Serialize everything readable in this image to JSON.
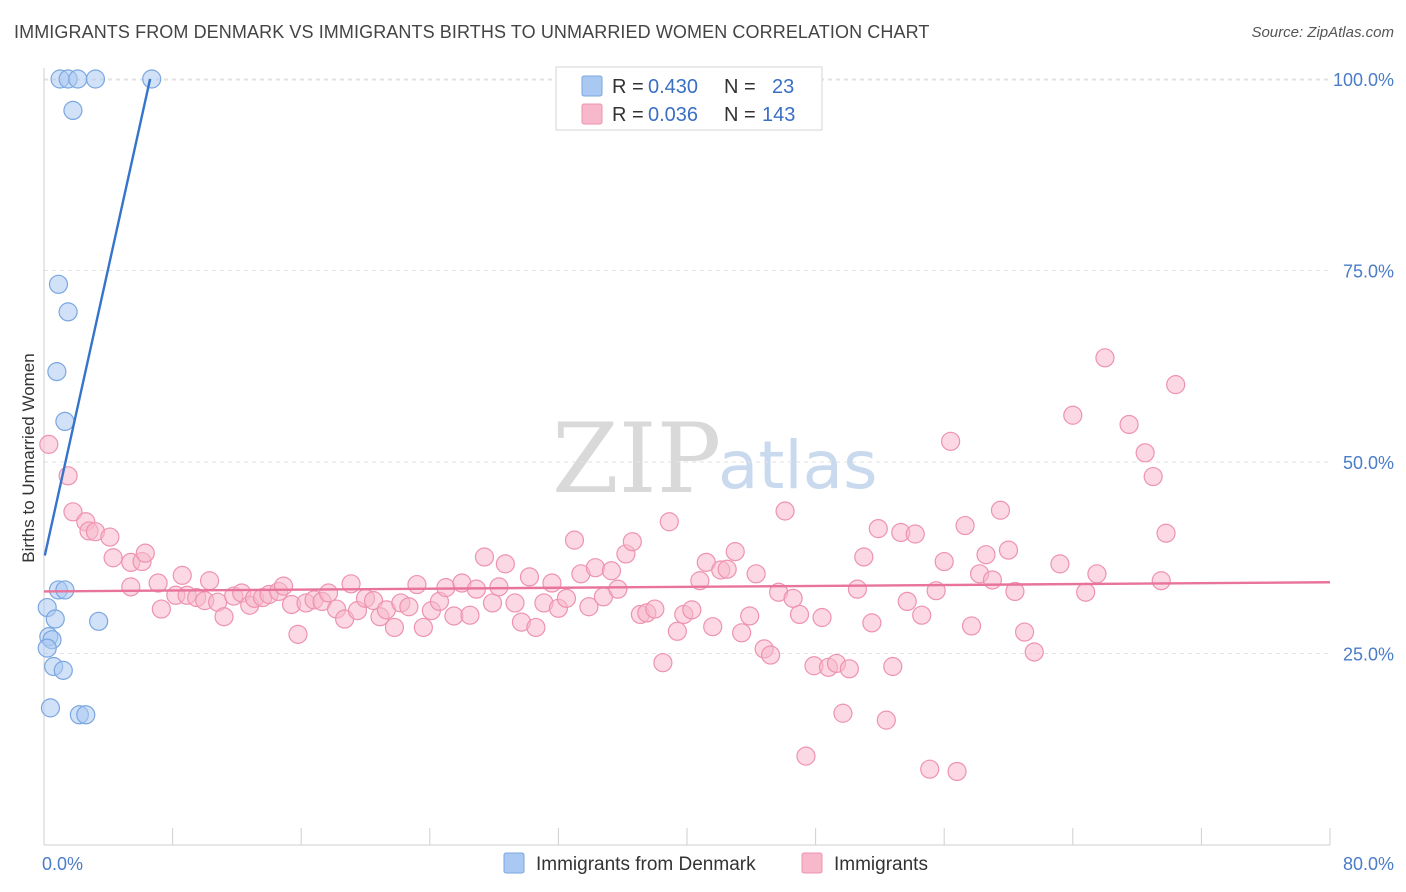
{
  "header": {
    "title": "IMMIGRANTS FROM DENMARK VS IMMIGRANTS BIRTHS TO UNMARRIED WOMEN CORRELATION CHART",
    "source": "Source: ZipAtlas.com"
  },
  "watermark": {
    "zip": "ZIP",
    "atlas": "atlas"
  },
  "legend": {
    "rows": [
      {
        "r_label": "R =",
        "r_value": "0.430",
        "n_label": "N =",
        "n_value": "23",
        "color": "#a9c8f2"
      },
      {
        "r_label": "R =",
        "r_value": "0.036",
        "n_label": "N =",
        "n_value": "143",
        "color": "#f7b8cc"
      }
    ]
  },
  "bottom_legend": {
    "items": [
      {
        "label": "Immigrants from Denmark",
        "color": "#a9c8f2"
      },
      {
        "label": "Immigrants",
        "color": "#f7b8cc"
      }
    ]
  },
  "chart_data": {
    "type": "scatter",
    "title": "IMMIGRANTS FROM DENMARK VS IMMIGRANTS BIRTHS TO UNMARRIED WOMEN CORRELATION CHART",
    "xlabel": "",
    "ylabel": "Births to Unmarried Women",
    "xlim": [
      0,
      80
    ],
    "ylim": [
      0,
      103
    ],
    "x_tick_labels": [
      "0.0%",
      "80.0%"
    ],
    "y_ticks": [
      25,
      50,
      75,
      100
    ],
    "y_tick_labels": [
      "25.0%",
      "50.0%",
      "75.0%",
      "100.0%"
    ],
    "grid": true,
    "series": [
      {
        "name": "Immigrants from Denmark",
        "color": "#a9c8f2",
        "stroke": "#7aa7e0",
        "line_color": "#3674cc",
        "trend": [
          [
            0.05,
            37.8
          ],
          [
            6.6,
            100
          ]
        ],
        "points": [
          [
            1.0,
            100
          ],
          [
            1.5,
            100
          ],
          [
            2.1,
            100
          ],
          [
            3.2,
            100
          ],
          [
            6.7,
            100
          ],
          [
            1.8,
            95.9
          ],
          [
            0.9,
            73.2
          ],
          [
            1.5,
            69.6
          ],
          [
            0.8,
            61.8
          ],
          [
            1.3,
            55.3
          ],
          [
            0.2,
            31.0
          ],
          [
            0.9,
            33.3
          ],
          [
            1.3,
            33.3
          ],
          [
            0.7,
            29.5
          ],
          [
            3.4,
            29.2
          ],
          [
            0.3,
            27.2
          ],
          [
            0.5,
            26.8
          ],
          [
            0.2,
            25.7
          ],
          [
            0.6,
            23.3
          ],
          [
            1.2,
            22.8
          ],
          [
            0.4,
            17.9
          ],
          [
            2.2,
            17.0
          ],
          [
            2.6,
            17.0
          ]
        ]
      },
      {
        "name": "Immigrants",
        "color": "#f7b8cc",
        "stroke": "#ee93af",
        "line_color": "#e8739b",
        "trend": [
          [
            0,
            33.1
          ],
          [
            80,
            34.3
          ]
        ],
        "points": [
          [
            0.3,
            52.3
          ],
          [
            1.5,
            48.2
          ],
          [
            1.8,
            43.5
          ],
          [
            2.6,
            42.2
          ],
          [
            2.8,
            41.0
          ],
          [
            3.2,
            40.9
          ],
          [
            4.1,
            40.2
          ],
          [
            4.3,
            37.5
          ],
          [
            5.4,
            36.9
          ],
          [
            6.1,
            37.0
          ],
          [
            6.3,
            38.1
          ],
          [
            5.4,
            33.7
          ],
          [
            7.1,
            34.2
          ],
          [
            7.3,
            30.8
          ],
          [
            8.2,
            32.6
          ],
          [
            8.6,
            35.2
          ],
          [
            8.9,
            32.6
          ],
          [
            9.5,
            32.3
          ],
          [
            10.0,
            31.9
          ],
          [
            10.3,
            34.5
          ],
          [
            10.8,
            31.7
          ],
          [
            11.2,
            29.8
          ],
          [
            11.8,
            32.5
          ],
          [
            12.3,
            32.9
          ],
          [
            12.8,
            31.3
          ],
          [
            13.1,
            32.2
          ],
          [
            13.6,
            32.3
          ],
          [
            14.0,
            32.7
          ],
          [
            14.6,
            33.1
          ],
          [
            14.9,
            33.8
          ],
          [
            15.4,
            31.4
          ],
          [
            15.8,
            27.5
          ],
          [
            16.3,
            31.6
          ],
          [
            16.8,
            32.0
          ],
          [
            17.3,
            31.8
          ],
          [
            17.7,
            32.9
          ],
          [
            18.2,
            30.8
          ],
          [
            18.7,
            29.5
          ],
          [
            19.1,
            34.1
          ],
          [
            19.5,
            30.6
          ],
          [
            20.0,
            32.2
          ],
          [
            20.5,
            31.9
          ],
          [
            20.9,
            29.8
          ],
          [
            21.3,
            30.7
          ],
          [
            21.8,
            28.4
          ],
          [
            22.2,
            31.6
          ],
          [
            22.7,
            31.1
          ],
          [
            23.2,
            34.0
          ],
          [
            23.6,
            28.4
          ],
          [
            24.1,
            30.6
          ],
          [
            24.6,
            31.8
          ],
          [
            25.0,
            33.6
          ],
          [
            25.5,
            29.9
          ],
          [
            26.0,
            34.2
          ],
          [
            26.5,
            30.0
          ],
          [
            26.9,
            33.4
          ],
          [
            27.4,
            37.6
          ],
          [
            27.9,
            31.6
          ],
          [
            28.3,
            33.7
          ],
          [
            28.7,
            36.7
          ],
          [
            29.3,
            31.6
          ],
          [
            29.7,
            29.1
          ],
          [
            30.2,
            35.0
          ],
          [
            30.6,
            28.4
          ],
          [
            31.1,
            31.6
          ],
          [
            31.6,
            34.2
          ],
          [
            32.0,
            30.9
          ],
          [
            32.5,
            32.2
          ],
          [
            33.0,
            39.8
          ],
          [
            33.4,
            35.4
          ],
          [
            33.9,
            31.1
          ],
          [
            34.3,
            36.2
          ],
          [
            34.8,
            32.4
          ],
          [
            35.3,
            35.8
          ],
          [
            35.7,
            33.4
          ],
          [
            36.2,
            38.0
          ],
          [
            36.6,
            39.6
          ],
          [
            37.1,
            30.1
          ],
          [
            37.5,
            30.3
          ],
          [
            38.0,
            30.8
          ],
          [
            38.5,
            23.8
          ],
          [
            38.9,
            42.2
          ],
          [
            39.4,
            27.9
          ],
          [
            39.8,
            30.1
          ],
          [
            40.3,
            30.7
          ],
          [
            40.8,
            34.5
          ],
          [
            41.2,
            36.9
          ],
          [
            41.6,
            28.5
          ],
          [
            42.1,
            35.9
          ],
          [
            42.5,
            36.0
          ],
          [
            43.0,
            38.3
          ],
          [
            43.4,
            27.7
          ],
          [
            43.9,
            29.9
          ],
          [
            44.3,
            35.4
          ],
          [
            44.8,
            25.6
          ],
          [
            45.2,
            24.8
          ],
          [
            45.7,
            33.0
          ],
          [
            46.1,
            43.6
          ],
          [
            46.6,
            32.2
          ],
          [
            47.0,
            30.1
          ],
          [
            47.4,
            11.6
          ],
          [
            47.9,
            23.4
          ],
          [
            48.4,
            29.7
          ],
          [
            48.8,
            23.2
          ],
          [
            49.3,
            23.7
          ],
          [
            49.7,
            17.2
          ],
          [
            50.1,
            23.0
          ],
          [
            50.6,
            33.4
          ],
          [
            51.0,
            37.6
          ],
          [
            51.5,
            29.0
          ],
          [
            51.9,
            41.3
          ],
          [
            52.4,
            16.3
          ],
          [
            52.8,
            23.3
          ],
          [
            53.3,
            40.8
          ],
          [
            53.7,
            31.8
          ],
          [
            54.2,
            40.6
          ],
          [
            54.6,
            30.0
          ],
          [
            55.1,
            9.9
          ],
          [
            55.5,
            33.2
          ],
          [
            56.0,
            37.0
          ],
          [
            56.4,
            52.7
          ],
          [
            56.8,
            9.6
          ],
          [
            57.3,
            41.7
          ],
          [
            57.7,
            28.6
          ],
          [
            58.2,
            35.4
          ],
          [
            58.6,
            37.9
          ],
          [
            59.0,
            34.6
          ],
          [
            59.5,
            43.7
          ],
          [
            60.0,
            38.5
          ],
          [
            60.4,
            33.1
          ],
          [
            61.0,
            27.8
          ],
          [
            61.6,
            25.2
          ],
          [
            63.2,
            36.7
          ],
          [
            64.0,
            56.1
          ],
          [
            64.8,
            33.0
          ],
          [
            65.5,
            35.4
          ],
          [
            66.0,
            63.6
          ],
          [
            67.5,
            54.9
          ],
          [
            68.5,
            51.2
          ],
          [
            69.0,
            48.1
          ],
          [
            69.5,
            34.5
          ],
          [
            69.8,
            40.7
          ],
          [
            70.4,
            60.1
          ]
        ]
      }
    ]
  }
}
